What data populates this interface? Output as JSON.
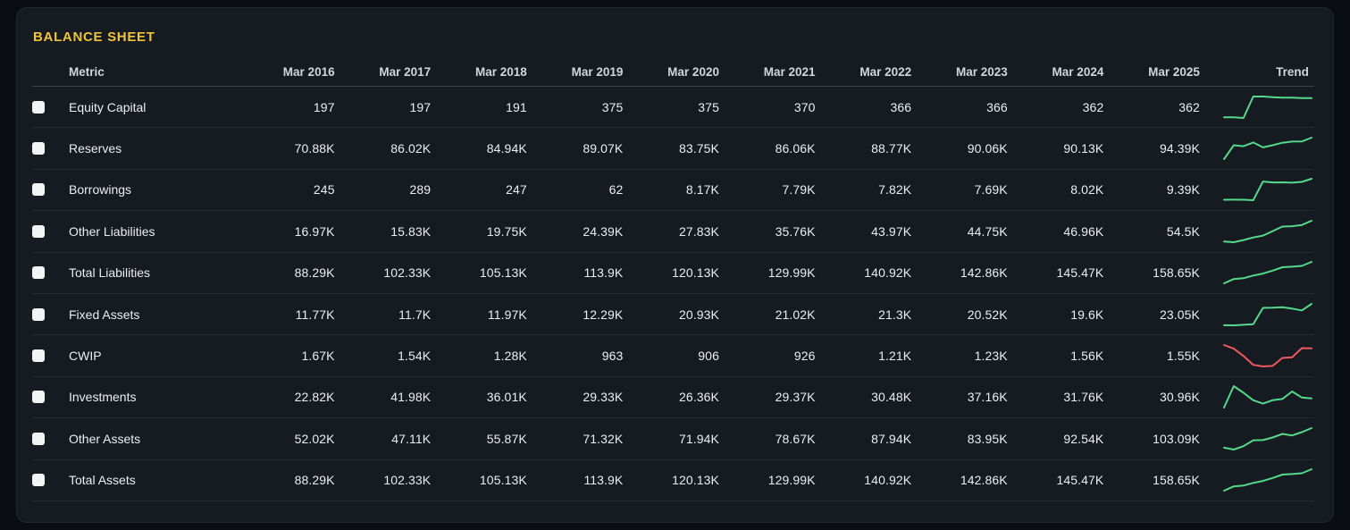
{
  "title": "BALANCE SHEET",
  "colors": {
    "accent_yellow": "#eec53d",
    "trend_up": "#55d98b",
    "trend_down": "#ef5a60",
    "page_bg": "#0a0d11",
    "card_bg": "#161a21"
  },
  "table": {
    "metric_header": "Metric",
    "trend_header": "Trend",
    "year_headers": [
      "Mar 2016",
      "Mar 2017",
      "Mar 2018",
      "Mar 2019",
      "Mar 2020",
      "Mar 2021",
      "Mar 2022",
      "Mar 2023",
      "Mar 2024",
      "Mar 2025"
    ],
    "rows": [
      {
        "metric": "Equity Capital",
        "values": [
          "197",
          "197",
          "191",
          "375",
          "375",
          "370",
          "366",
          "366",
          "362",
          "362"
        ],
        "trend": "up"
      },
      {
        "metric": "Reserves",
        "values": [
          "70.88K",
          "86.02K",
          "84.94K",
          "89.07K",
          "83.75K",
          "86.06K",
          "88.77K",
          "90.06K",
          "90.13K",
          "94.39K"
        ],
        "trend": "up"
      },
      {
        "metric": "Borrowings",
        "values": [
          "245",
          "289",
          "247",
          "62",
          "8.17K",
          "7.79K",
          "7.82K",
          "7.69K",
          "8.02K",
          "9.39K"
        ],
        "trend": "up"
      },
      {
        "metric": "Other Liabilities",
        "values": [
          "16.97K",
          "15.83K",
          "19.75K",
          "24.39K",
          "27.83K",
          "35.76K",
          "43.97K",
          "44.75K",
          "46.96K",
          "54.5K"
        ],
        "trend": "up"
      },
      {
        "metric": "Total Liabilities",
        "values": [
          "88.29K",
          "102.33K",
          "105.13K",
          "113.9K",
          "120.13K",
          "129.99K",
          "140.92K",
          "142.86K",
          "145.47K",
          "158.65K"
        ],
        "trend": "up"
      },
      {
        "metric": "Fixed Assets",
        "values": [
          "11.77K",
          "11.7K",
          "11.97K",
          "12.29K",
          "20.93K",
          "21.02K",
          "21.3K",
          "20.52K",
          "19.6K",
          "23.05K"
        ],
        "trend": "up"
      },
      {
        "metric": "CWIP",
        "values": [
          "1.67K",
          "1.54K",
          "1.28K",
          "963",
          "906",
          "926",
          "1.21K",
          "1.23K",
          "1.56K",
          "1.55K"
        ],
        "trend": "down"
      },
      {
        "metric": "Investments",
        "values": [
          "22.82K",
          "41.98K",
          "36.01K",
          "29.33K",
          "26.36K",
          "29.37K",
          "30.48K",
          "37.16K",
          "31.76K",
          "30.96K"
        ],
        "trend": "up"
      },
      {
        "metric": "Other Assets",
        "values": [
          "52.02K",
          "47.11K",
          "55.87K",
          "71.32K",
          "71.94K",
          "78.67K",
          "87.94K",
          "83.95K",
          "92.54K",
          "103.09K"
        ],
        "trend": "up"
      },
      {
        "metric": "Total Assets",
        "values": [
          "88.29K",
          "102.33K",
          "105.13K",
          "113.9K",
          "120.13K",
          "129.99K",
          "140.92K",
          "142.86K",
          "145.47K",
          "158.65K"
        ],
        "trend": "up"
      }
    ]
  }
}
